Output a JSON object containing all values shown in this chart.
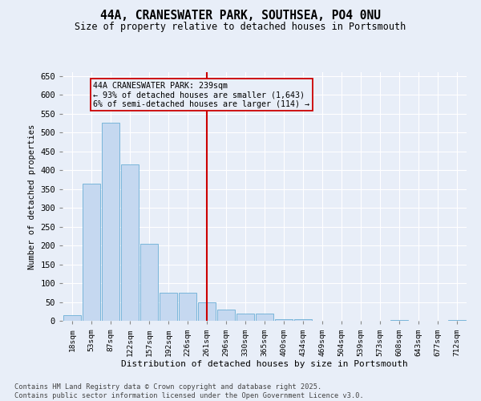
{
  "title": "44A, CRANESWATER PARK, SOUTHSEA, PO4 0NU",
  "subtitle": "Size of property relative to detached houses in Portsmouth",
  "xlabel": "Distribution of detached houses by size in Portsmouth",
  "ylabel": "Number of detached properties",
  "categories": [
    "18sqm",
    "53sqm",
    "87sqm",
    "122sqm",
    "157sqm",
    "192sqm",
    "226sqm",
    "261sqm",
    "296sqm",
    "330sqm",
    "365sqm",
    "400sqm",
    "434sqm",
    "469sqm",
    "504sqm",
    "539sqm",
    "573sqm",
    "608sqm",
    "643sqm",
    "677sqm",
    "712sqm"
  ],
  "values": [
    15,
    365,
    525,
    415,
    205,
    75,
    75,
    50,
    30,
    20,
    20,
    5,
    5,
    0,
    0,
    0,
    0,
    2,
    0,
    0,
    2
  ],
  "bar_color": "#c5d8f0",
  "bar_edge_color": "#6aaed6",
  "background_color": "#e8eef8",
  "grid_color": "#ffffff",
  "vline_x_index": 7.0,
  "vline_color": "#cc0000",
  "annotation_text": "44A CRANESWATER PARK: 239sqm\n← 93% of detached houses are smaller (1,643)\n6% of semi-detached houses are larger (114) →",
  "annotation_box_color": "#cc0000",
  "footer1": "Contains HM Land Registry data © Crown copyright and database right 2025.",
  "footer2": "Contains public sector information licensed under the Open Government Licence v3.0.",
  "ylim": [
    0,
    660
  ],
  "yticks": [
    0,
    50,
    100,
    150,
    200,
    250,
    300,
    350,
    400,
    450,
    500,
    550,
    600,
    650
  ]
}
